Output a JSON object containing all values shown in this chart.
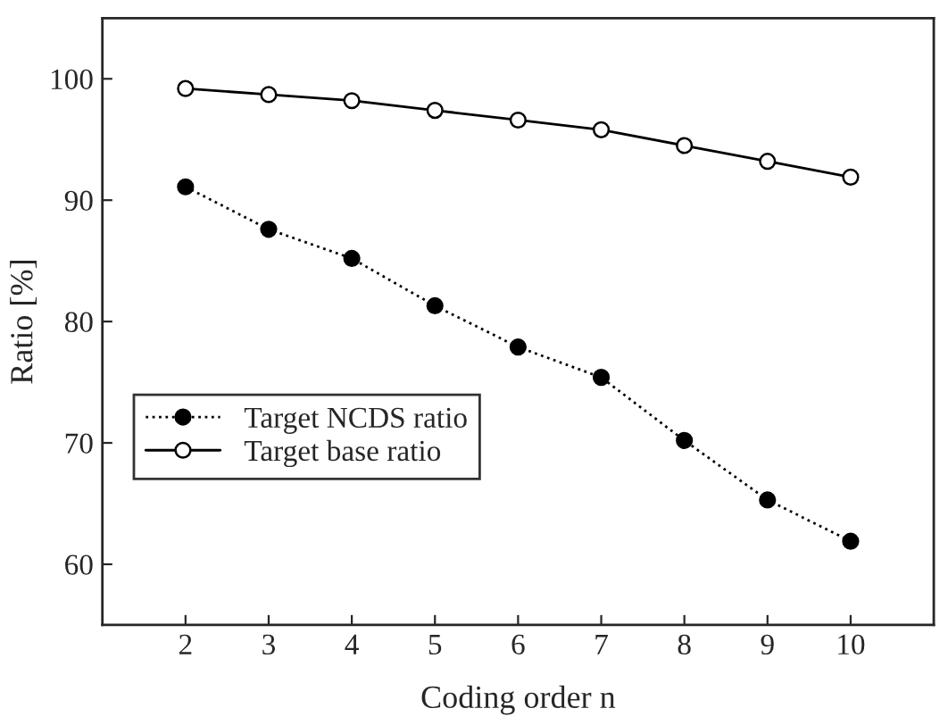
{
  "chart_data": {
    "type": "line",
    "xlabel": "Coding order n",
    "ylabel": "Ratio [%]",
    "x": [
      2,
      3,
      4,
      5,
      6,
      7,
      8,
      9,
      10
    ],
    "series": [
      {
        "name": "Target NCDS ratio",
        "color": "#000000",
        "line_style": "dotted",
        "values": [
          91.1,
          87.6,
          85.2,
          81.3,
          77.9,
          75.4,
          70.2,
          65.3,
          61.9
        ]
      },
      {
        "name": "Target base ratio",
        "color": "#000000",
        "line_style": "solid",
        "values": [
          99.2,
          98.7,
          98.2,
          97.4,
          96.6,
          95.8,
          94.5,
          93.2,
          91.9
        ]
      }
    ],
    "xlim": [
      1,
      11
    ],
    "xticks": [
      2,
      3,
      4,
      5,
      6,
      7,
      8,
      9,
      10
    ],
    "ylim": [
      55,
      105
    ],
    "yticks": [
      60,
      70,
      80,
      90,
      100
    ],
    "marker": "circle",
    "grid": false,
    "legend": "center left"
  }
}
